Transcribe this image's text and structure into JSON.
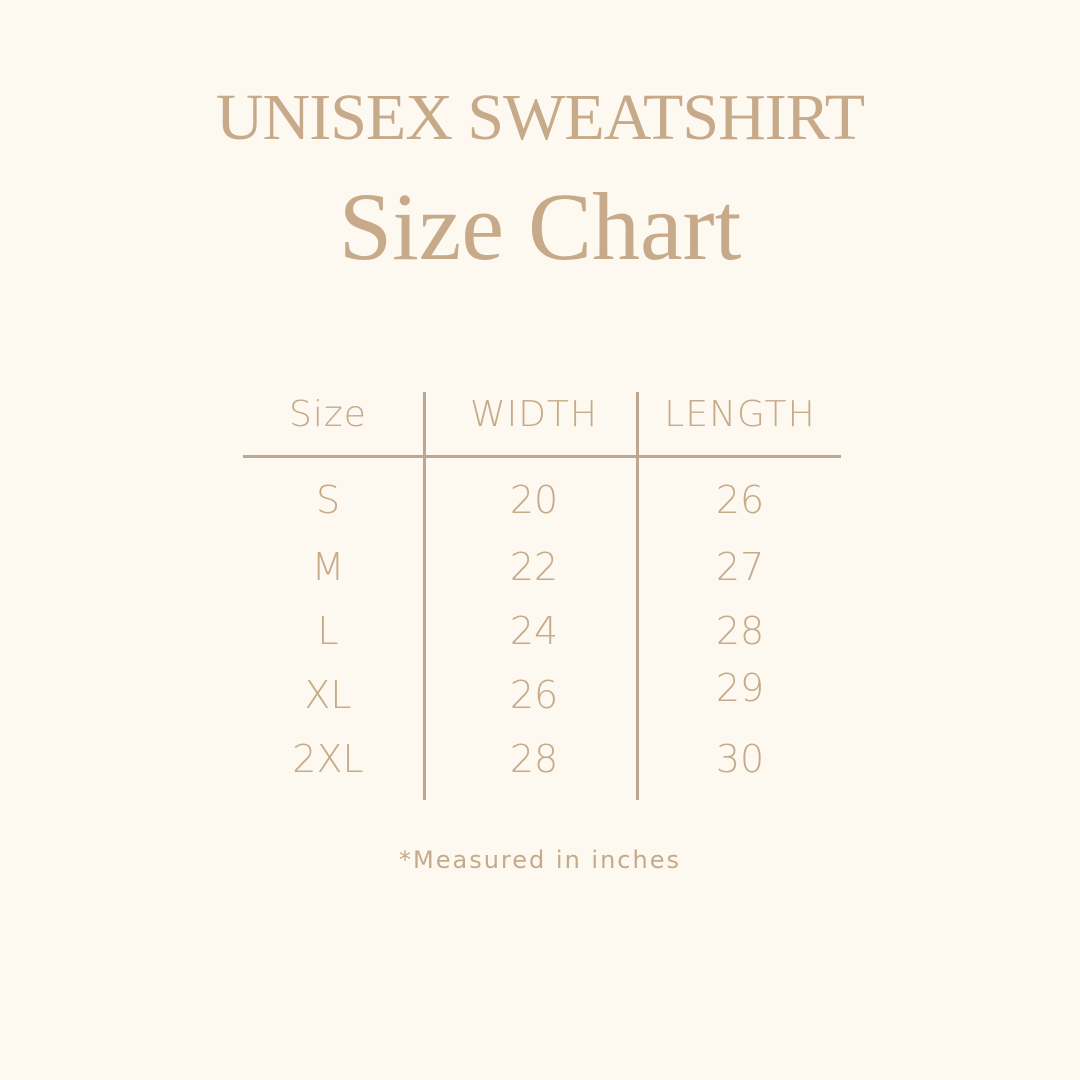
{
  "title": "UNISEX SWEATSHIRT",
  "subtitle": "Size Chart",
  "table": {
    "headers": [
      "Size",
      "WIDTH",
      "LENGTH"
    ],
    "rows": [
      [
        "S",
        "20",
        "26"
      ],
      [
        "M",
        "22",
        "27"
      ],
      [
        "L",
        "24",
        "28"
      ],
      [
        "XL",
        "26",
        "29"
      ],
      [
        "2XL",
        "28",
        "30"
      ]
    ]
  },
  "footnote": "*Measured in inches",
  "colors": {
    "background": "#fdf8f0",
    "text": "#c6aa89",
    "lines": "#bca892"
  }
}
